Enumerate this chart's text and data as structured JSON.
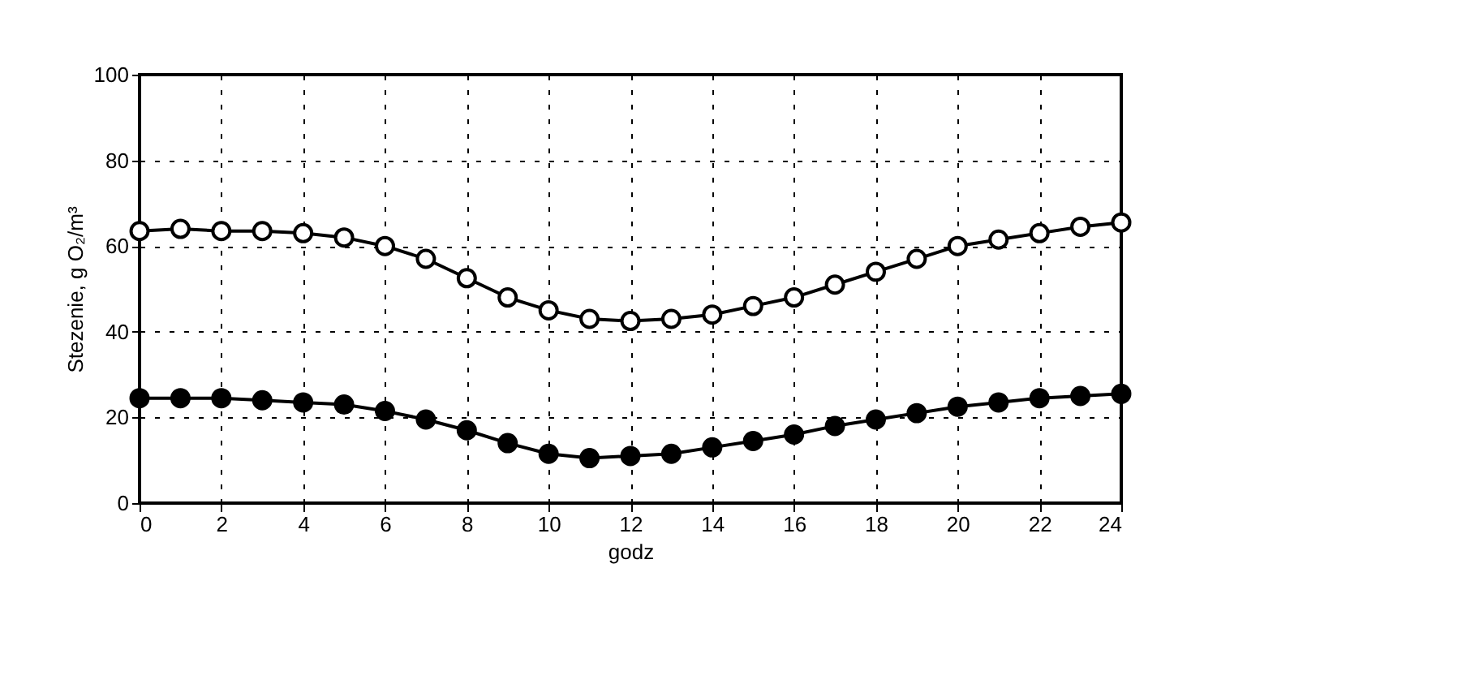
{
  "chart_data": {
    "type": "line",
    "xlabel": "godz",
    "ylabel": "Stezenie, g O₂/m³",
    "x": [
      0,
      1,
      2,
      3,
      4,
      5,
      6,
      7,
      8,
      9,
      10,
      11,
      12,
      13,
      14,
      15,
      16,
      17,
      18,
      19,
      20,
      21,
      22,
      23,
      24
    ],
    "series": [
      {
        "color": "#ffffff",
        "values": [
          63.5,
          64,
          63.5,
          63.5,
          63,
          62,
          60,
          57,
          52.5,
          48,
          45,
          43,
          42.5,
          43,
          44,
          46,
          48,
          51,
          54,
          57,
          60,
          61.5,
          63,
          64.5,
          65.5
        ]
      },
      {
        "color": "#000000",
        "values": [
          24.5,
          24.5,
          24.5,
          24,
          23.5,
          23,
          21.5,
          19.5,
          17,
          14,
          11.5,
          10.5,
          11,
          11.5,
          13,
          14.5,
          16,
          18,
          19.5,
          21,
          22.5,
          23.5,
          24.5,
          25,
          25.5
        ]
      }
    ],
    "xlim": [
      0,
      24
    ],
    "xticks": [
      0,
      2,
      4,
      6,
      8,
      10,
      12,
      14,
      16,
      18,
      20,
      22,
      24
    ],
    "ylim": [
      0,
      100
    ],
    "yticks": [
      0,
      20,
      40,
      60,
      80,
      100
    ],
    "grid": true,
    "marker": "circle",
    "line_style": "solid"
  }
}
